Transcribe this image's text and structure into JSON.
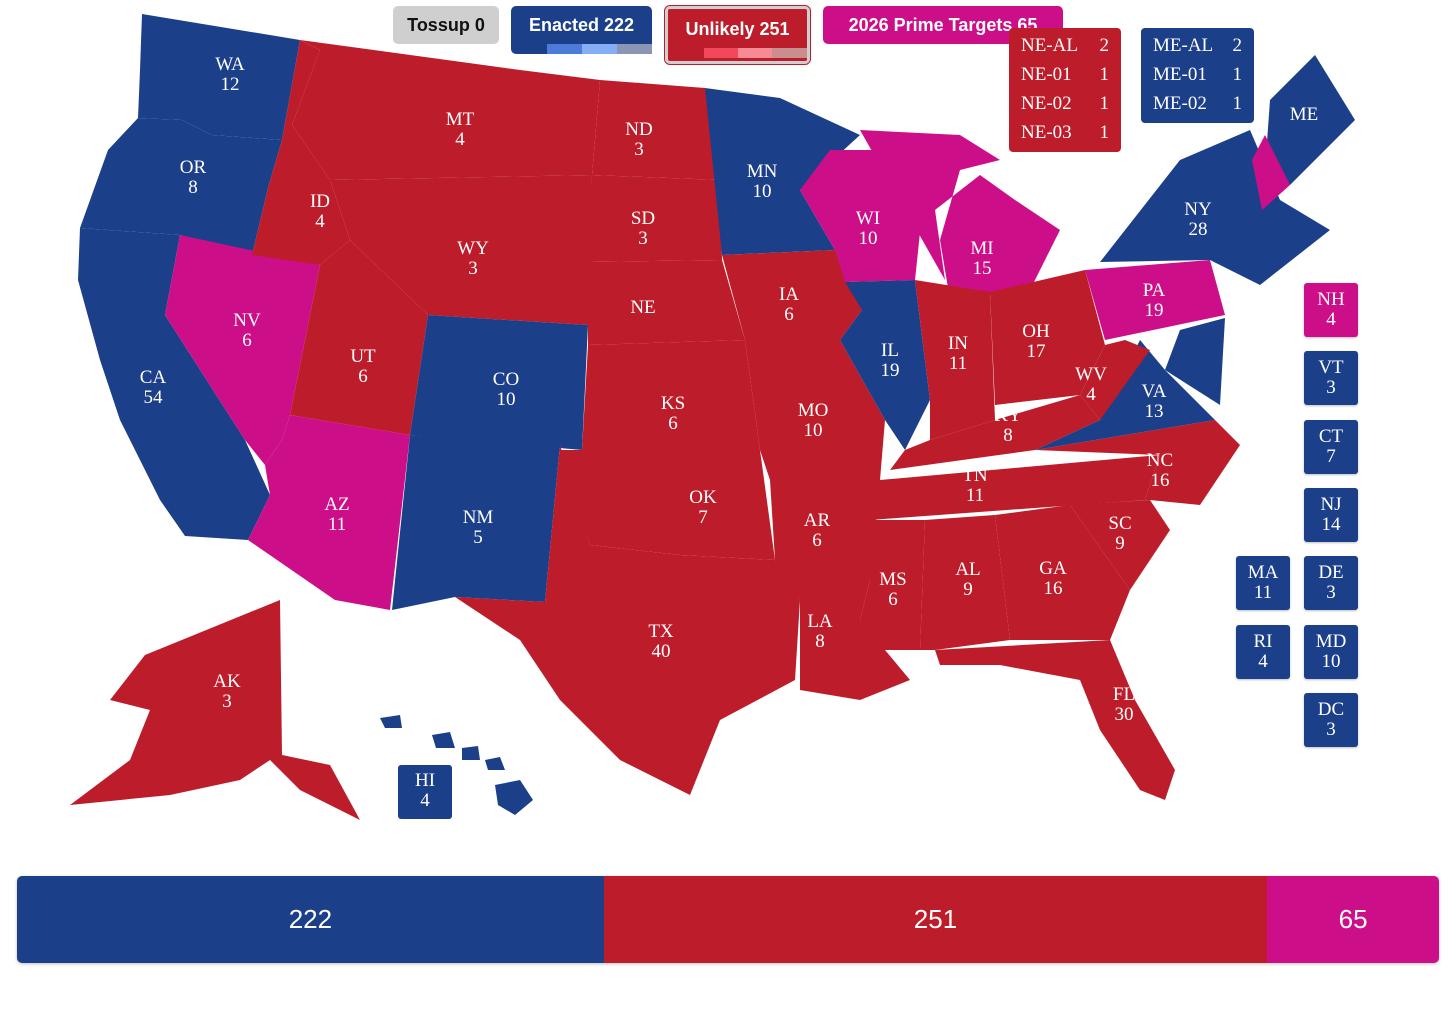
{
  "colors": {
    "enacted": "#1c3f8a",
    "unlikely": "#bd1c2a",
    "target": "#cc0f89",
    "tossup": "#cfcfcf"
  },
  "legend": {
    "tossup": "Tossup 0",
    "enacted": "Enacted 222",
    "unlikely": "Unlikely 251",
    "targets": "2026 Prime Targets 65"
  },
  "states": [
    {
      "abbr": "WA",
      "ev": "12",
      "category": "enacted"
    },
    {
      "abbr": "OR",
      "ev": "8",
      "category": "enacted"
    },
    {
      "abbr": "CA",
      "ev": "54",
      "category": "enacted"
    },
    {
      "abbr": "NV",
      "ev": "6",
      "category": "target"
    },
    {
      "abbr": "ID",
      "ev": "4",
      "category": "unlikely"
    },
    {
      "abbr": "MT",
      "ev": "4",
      "category": "unlikely"
    },
    {
      "abbr": "WY",
      "ev": "3",
      "category": "unlikely"
    },
    {
      "abbr": "UT",
      "ev": "6",
      "category": "unlikely"
    },
    {
      "abbr": "AZ",
      "ev": "11",
      "category": "target"
    },
    {
      "abbr": "CO",
      "ev": "10",
      "category": "enacted"
    },
    {
      "abbr": "NM",
      "ev": "5",
      "category": "enacted"
    },
    {
      "abbr": "ND",
      "ev": "3",
      "category": "unlikely"
    },
    {
      "abbr": "SD",
      "ev": "3",
      "category": "unlikely"
    },
    {
      "abbr": "NE",
      "ev": "",
      "category": "unlikely"
    },
    {
      "abbr": "KS",
      "ev": "6",
      "category": "unlikely"
    },
    {
      "abbr": "OK",
      "ev": "7",
      "category": "unlikely"
    },
    {
      "abbr": "TX",
      "ev": "40",
      "category": "unlikely"
    },
    {
      "abbr": "MN",
      "ev": "10",
      "category": "enacted"
    },
    {
      "abbr": "IA",
      "ev": "6",
      "category": "unlikely"
    },
    {
      "abbr": "MO",
      "ev": "10",
      "category": "unlikely"
    },
    {
      "abbr": "AR",
      "ev": "6",
      "category": "unlikely"
    },
    {
      "abbr": "LA",
      "ev": "8",
      "category": "unlikely"
    },
    {
      "abbr": "WI",
      "ev": "10",
      "category": "target"
    },
    {
      "abbr": "IL",
      "ev": "19",
      "category": "enacted"
    },
    {
      "abbr": "MI",
      "ev": "15",
      "category": "target"
    },
    {
      "abbr": "IN",
      "ev": "11",
      "category": "unlikely"
    },
    {
      "abbr": "OH",
      "ev": "17",
      "category": "unlikely"
    },
    {
      "abbr": "KY",
      "ev": "8",
      "category": "unlikely"
    },
    {
      "abbr": "TN",
      "ev": "11",
      "category": "unlikely"
    },
    {
      "abbr": "MS",
      "ev": "6",
      "category": "unlikely"
    },
    {
      "abbr": "AL",
      "ev": "9",
      "category": "unlikely"
    },
    {
      "abbr": "GA",
      "ev": "16",
      "category": "unlikely"
    },
    {
      "abbr": "FL",
      "ev": "30",
      "category": "unlikely"
    },
    {
      "abbr": "SC",
      "ev": "9",
      "category": "unlikely"
    },
    {
      "abbr": "NC",
      "ev": "16",
      "category": "unlikely"
    },
    {
      "abbr": "VA",
      "ev": "13",
      "category": "enacted"
    },
    {
      "abbr": "WV",
      "ev": "4",
      "category": "unlikely"
    },
    {
      "abbr": "PA",
      "ev": "19",
      "category": "target"
    },
    {
      "abbr": "NY",
      "ev": "28",
      "category": "enacted"
    },
    {
      "abbr": "ME",
      "ev": "",
      "category": "enacted"
    },
    {
      "abbr": "AK",
      "ev": "3",
      "category": "unlikely"
    },
    {
      "abbr": "HI",
      "ev": "4",
      "category": "enacted"
    }
  ],
  "small_states": [
    {
      "abbr": "NH",
      "ev": "4",
      "category": "target"
    },
    {
      "abbr": "VT",
      "ev": "3",
      "category": "enacted"
    },
    {
      "abbr": "CT",
      "ev": "7",
      "category": "enacted"
    },
    {
      "abbr": "NJ",
      "ev": "14",
      "category": "enacted"
    },
    {
      "abbr": "MA",
      "ev": "11",
      "category": "enacted"
    },
    {
      "abbr": "DE",
      "ev": "3",
      "category": "enacted"
    },
    {
      "abbr": "RI",
      "ev": "4",
      "category": "enacted"
    },
    {
      "abbr": "MD",
      "ev": "10",
      "category": "enacted"
    },
    {
      "abbr": "DC",
      "ev": "3",
      "category": "enacted"
    }
  ],
  "nebraska_districts": [
    {
      "name": "NE-AL",
      "ev": "2"
    },
    {
      "name": "NE-01",
      "ev": "1"
    },
    {
      "name": "NE-02",
      "ev": "1"
    },
    {
      "name": "NE-03",
      "ev": "1"
    }
  ],
  "maine_districts": [
    {
      "name": "ME-AL",
      "ev": "2"
    },
    {
      "name": "ME-01",
      "ev": "1"
    },
    {
      "name": "ME-02",
      "ev": "1"
    }
  ],
  "totals_bar": [
    {
      "label": "222",
      "value": 222,
      "category": "enacted"
    },
    {
      "label": "251",
      "value": 251,
      "category": "unlikely"
    },
    {
      "label": "65",
      "value": 65,
      "category": "target"
    }
  ]
}
